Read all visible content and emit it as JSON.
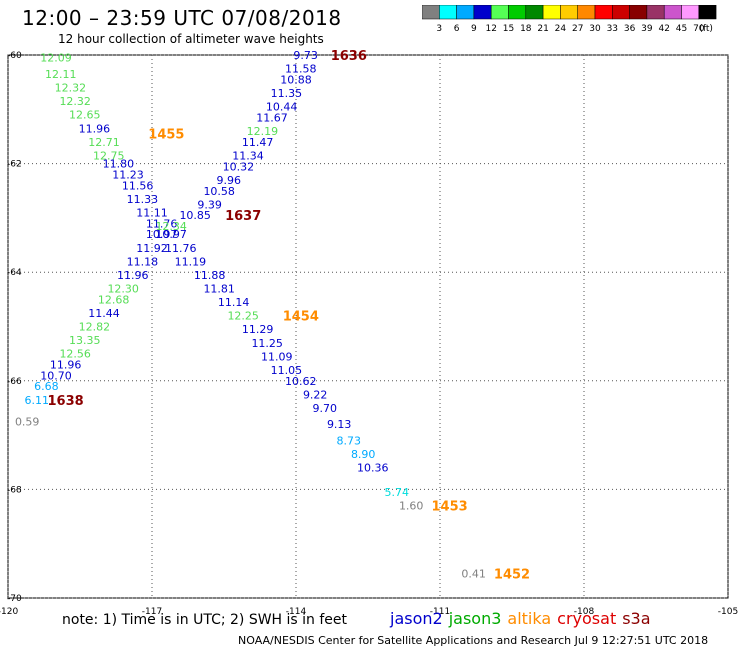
{
  "header": {
    "title": "12:00 – 23:59 UTC 07/08/2018",
    "subtitle": "12 hour collection of altimeter wave heights"
  },
  "colorbar": {
    "unit_label": "(ft)",
    "bins": [
      {
        "label": "3",
        "color": "#808080"
      },
      {
        "label": "6",
        "color": "#00ffff"
      },
      {
        "label": "9",
        "color": "#00aaff"
      },
      {
        "label": "12",
        "color": "#0000cc"
      },
      {
        "label": "15",
        "color": "#55ff55"
      },
      {
        "label": "18",
        "color": "#00cc00"
      },
      {
        "label": "21",
        "color": "#008800"
      },
      {
        "label": "24",
        "color": "#ffff00"
      },
      {
        "label": "27",
        "color": "#ffcc00"
      },
      {
        "label": "30",
        "color": "#ff8800"
      },
      {
        "label": "33",
        "color": "#ff0000"
      },
      {
        "label": "36",
        "color": "#cc0000"
      },
      {
        "label": "39",
        "color": "#880000"
      },
      {
        "label": "42",
        "color": "#993366"
      },
      {
        "label": "45",
        "color": "#cc55cc"
      },
      {
        "label": "70",
        "color": "#ff99ff"
      },
      {
        "label": "",
        "color": "#000000"
      }
    ]
  },
  "chart_data": {
    "type": "scatter",
    "xlim": [
      -120,
      -105
    ],
    "ylim": [
      -70,
      -60
    ],
    "xticks": [
      -120,
      -117,
      -114,
      -111,
      -108,
      -105
    ],
    "xtick_labels": [
      "-120",
      "-117",
      "-114",
      "-111",
      "-108",
      "-105"
    ],
    "yticks": [
      -60,
      -62,
      -64,
      -66,
      -68,
      -70
    ],
    "ytick_labels": [
      "-60",
      "-62",
      "-64",
      "-66",
      "-68",
      "-70"
    ],
    "grid": true,
    "points": [
      {
        "x": -119.0,
        "y": -60.05,
        "label": "12.09",
        "color": "#55dd55"
      },
      {
        "x": -118.9,
        "y": -60.35,
        "label": "12.11",
        "color": "#55dd55"
      },
      {
        "x": -118.7,
        "y": -60.6,
        "label": "12.32",
        "color": "#55dd55"
      },
      {
        "x": -118.6,
        "y": -60.85,
        "label": "12.32",
        "color": "#55dd55"
      },
      {
        "x": -118.4,
        "y": -61.1,
        "label": "12.65",
        "color": "#55dd55"
      },
      {
        "x": -118.2,
        "y": -61.35,
        "label": "11.96",
        "color": "#0000cc"
      },
      {
        "x": -118.0,
        "y": -61.6,
        "label": "12.71",
        "color": "#55dd55"
      },
      {
        "x": -117.9,
        "y": -61.85,
        "label": "12.75",
        "color": "#55dd55"
      },
      {
        "x": -117.7,
        "y": -62.0,
        "label": "11.80",
        "color": "#0000cc"
      },
      {
        "x": -117.5,
        "y": -62.2,
        "label": "11.23",
        "color": "#0000cc"
      },
      {
        "x": -117.3,
        "y": -62.4,
        "label": "11.56",
        "color": "#0000cc"
      },
      {
        "x": -117.2,
        "y": -62.65,
        "label": "11.33",
        "color": "#0000cc"
      },
      {
        "x": -117.0,
        "y": -62.9,
        "label": "11.11",
        "color": "#0000cc"
      },
      {
        "x": -116.8,
        "y": -63.1,
        "label": "11.76",
        "color": "#0000cc"
      },
      {
        "x": -116.8,
        "y": -63.3,
        "label": "10.97",
        "color": "#0000cc"
      },
      {
        "x": -117.0,
        "y": -63.55,
        "label": "11.92",
        "color": "#0000cc"
      },
      {
        "x": -117.2,
        "y": -63.8,
        "label": "11.18",
        "color": "#0000cc"
      },
      {
        "x": -117.4,
        "y": -64.05,
        "label": "11.96",
        "color": "#0000cc"
      },
      {
        "x": -117.6,
        "y": -64.3,
        "label": "12.30",
        "color": "#55dd55"
      },
      {
        "x": -117.8,
        "y": -64.5,
        "label": "12.68",
        "color": "#55dd55"
      },
      {
        "x": -118.0,
        "y": -64.75,
        "label": "11.44",
        "color": "#0000cc"
      },
      {
        "x": -118.2,
        "y": -65.0,
        "label": "12.82",
        "color": "#55dd55"
      },
      {
        "x": -118.4,
        "y": -65.25,
        "label": "13.35",
        "color": "#55dd55"
      },
      {
        "x": -118.6,
        "y": -65.5,
        "label": "12.56",
        "color": "#55dd55"
      },
      {
        "x": -118.8,
        "y": -65.7,
        "label": "11.96",
        "color": "#0000cc"
      },
      {
        "x": -119.0,
        "y": -65.9,
        "label": "10.70",
        "color": "#0000cc"
      },
      {
        "x": -119.2,
        "y": -66.1,
        "label": "6.68",
        "color": "#00aaff"
      },
      {
        "x": -119.4,
        "y": -66.35,
        "label": "6.11",
        "color": "#00aaff"
      },
      {
        "x": -119.6,
        "y": -66.75,
        "label": "0.59",
        "color": "#808080"
      },
      {
        "x": -113.8,
        "y": -60.0,
        "label": "9.73",
        "color": "#0000cc"
      },
      {
        "x": -113.9,
        "y": -60.25,
        "label": "11.58",
        "color": "#0000cc"
      },
      {
        "x": -114.0,
        "y": -60.45,
        "label": "10.88",
        "color": "#0000cc"
      },
      {
        "x": -114.2,
        "y": -60.7,
        "label": "11.35",
        "color": "#0000cc"
      },
      {
        "x": -114.3,
        "y": -60.95,
        "label": "10.44",
        "color": "#0000cc"
      },
      {
        "x": -114.5,
        "y": -61.15,
        "label": "11.67",
        "color": "#0000cc"
      },
      {
        "x": -114.7,
        "y": -61.4,
        "label": "12.19",
        "color": "#55dd55"
      },
      {
        "x": -114.8,
        "y": -61.6,
        "label": "11.47",
        "color": "#0000cc"
      },
      {
        "x": -115.0,
        "y": -61.85,
        "label": "11.34",
        "color": "#0000cc"
      },
      {
        "x": -115.2,
        "y": -62.05,
        "label": "10.32",
        "color": "#0000cc"
      },
      {
        "x": -115.4,
        "y": -62.3,
        "label": "9.96",
        "color": "#0000cc"
      },
      {
        "x": -115.6,
        "y": -62.5,
        "label": "10.58",
        "color": "#0000cc"
      },
      {
        "x": -115.8,
        "y": -62.75,
        "label": "9.39",
        "color": "#0000cc"
      },
      {
        "x": -116.1,
        "y": -62.95,
        "label": "10.85",
        "color": "#0000cc"
      },
      {
        "x": -116.6,
        "y": -63.15,
        "label": "12.34",
        "color": "#55dd55"
      },
      {
        "x": -116.6,
        "y": -63.3,
        "label": "10.97",
        "color": "#0000cc"
      },
      {
        "x": -116.4,
        "y": -63.55,
        "label": "11.76",
        "color": "#0000cc"
      },
      {
        "x": -116.2,
        "y": -63.8,
        "label": "11.19",
        "color": "#0000cc"
      },
      {
        "x": -115.8,
        "y": -64.05,
        "label": "11.88",
        "color": "#0000cc"
      },
      {
        "x": -115.6,
        "y": -64.3,
        "label": "11.81",
        "color": "#0000cc"
      },
      {
        "x": -115.3,
        "y": -64.55,
        "label": "11.14",
        "color": "#0000cc"
      },
      {
        "x": -115.1,
        "y": -64.8,
        "label": "12.25",
        "color": "#55dd55"
      },
      {
        "x": -114.8,
        "y": -65.05,
        "label": "11.29",
        "color": "#0000cc"
      },
      {
        "x": -114.6,
        "y": -65.3,
        "label": "11.25",
        "color": "#0000cc"
      },
      {
        "x": -114.4,
        "y": -65.55,
        "label": "11.09",
        "color": "#0000cc"
      },
      {
        "x": -114.2,
        "y": -65.8,
        "label": "11.05",
        "color": "#0000cc"
      },
      {
        "x": -113.9,
        "y": -66.0,
        "label": "10.62",
        "color": "#0000cc"
      },
      {
        "x": -113.6,
        "y": -66.25,
        "label": "9.22",
        "color": "#0000cc"
      },
      {
        "x": -113.4,
        "y": -66.5,
        "label": "9.70",
        "color": "#0000cc"
      },
      {
        "x": -113.1,
        "y": -66.8,
        "label": "9.13",
        "color": "#0000cc"
      },
      {
        "x": -112.9,
        "y": -67.1,
        "label": "8.73",
        "color": "#00aaff"
      },
      {
        "x": -112.6,
        "y": -67.35,
        "label": "8.90",
        "color": "#00aaff"
      },
      {
        "x": -112.4,
        "y": -67.6,
        "label": "10.36",
        "color": "#0000cc"
      },
      {
        "x": -111.9,
        "y": -68.05,
        "label": "5.74",
        "color": "#00dddd"
      },
      {
        "x": -111.6,
        "y": -68.3,
        "label": "1.60",
        "color": "#808080"
      },
      {
        "x": -110.3,
        "y": -69.55,
        "label": "0.41",
        "color": "#808080"
      }
    ],
    "annotations": [
      {
        "x": -112.9,
        "y": -60.0,
        "text": "1636",
        "color": "#8b0000"
      },
      {
        "x": -116.7,
        "y": -61.45,
        "text": "1455",
        "color": "#ff8c00"
      },
      {
        "x": -115.1,
        "y": -62.95,
        "text": "1637",
        "color": "#8b0000"
      },
      {
        "x": -113.9,
        "y": -64.8,
        "text": "1454",
        "color": "#ff8c00"
      },
      {
        "x": -118.8,
        "y": -66.35,
        "text": "1638",
        "color": "#8b0000"
      },
      {
        "x": -110.8,
        "y": -68.3,
        "text": "1453",
        "color": "#ff8c00"
      },
      {
        "x": -109.5,
        "y": -69.55,
        "text": "1452",
        "color": "#ff8c00"
      }
    ]
  },
  "footer": {
    "note": "note: 1) Time is in UTC; 2) SWH is in feet",
    "credit": "NOAA/NESDIS Center for Satellite Applications and Research     Jul  9 12:27:51 UTC 2018"
  },
  "legend": [
    {
      "name": "jason2",
      "color": "#0000cc"
    },
    {
      "name": "jason3",
      "color": "#00aa00"
    },
    {
      "name": "altika",
      "color": "#ff8c00"
    },
    {
      "name": "cryosat",
      "color": "#dd0000"
    },
    {
      "name": "s3a",
      "color": "#8b0000"
    }
  ]
}
